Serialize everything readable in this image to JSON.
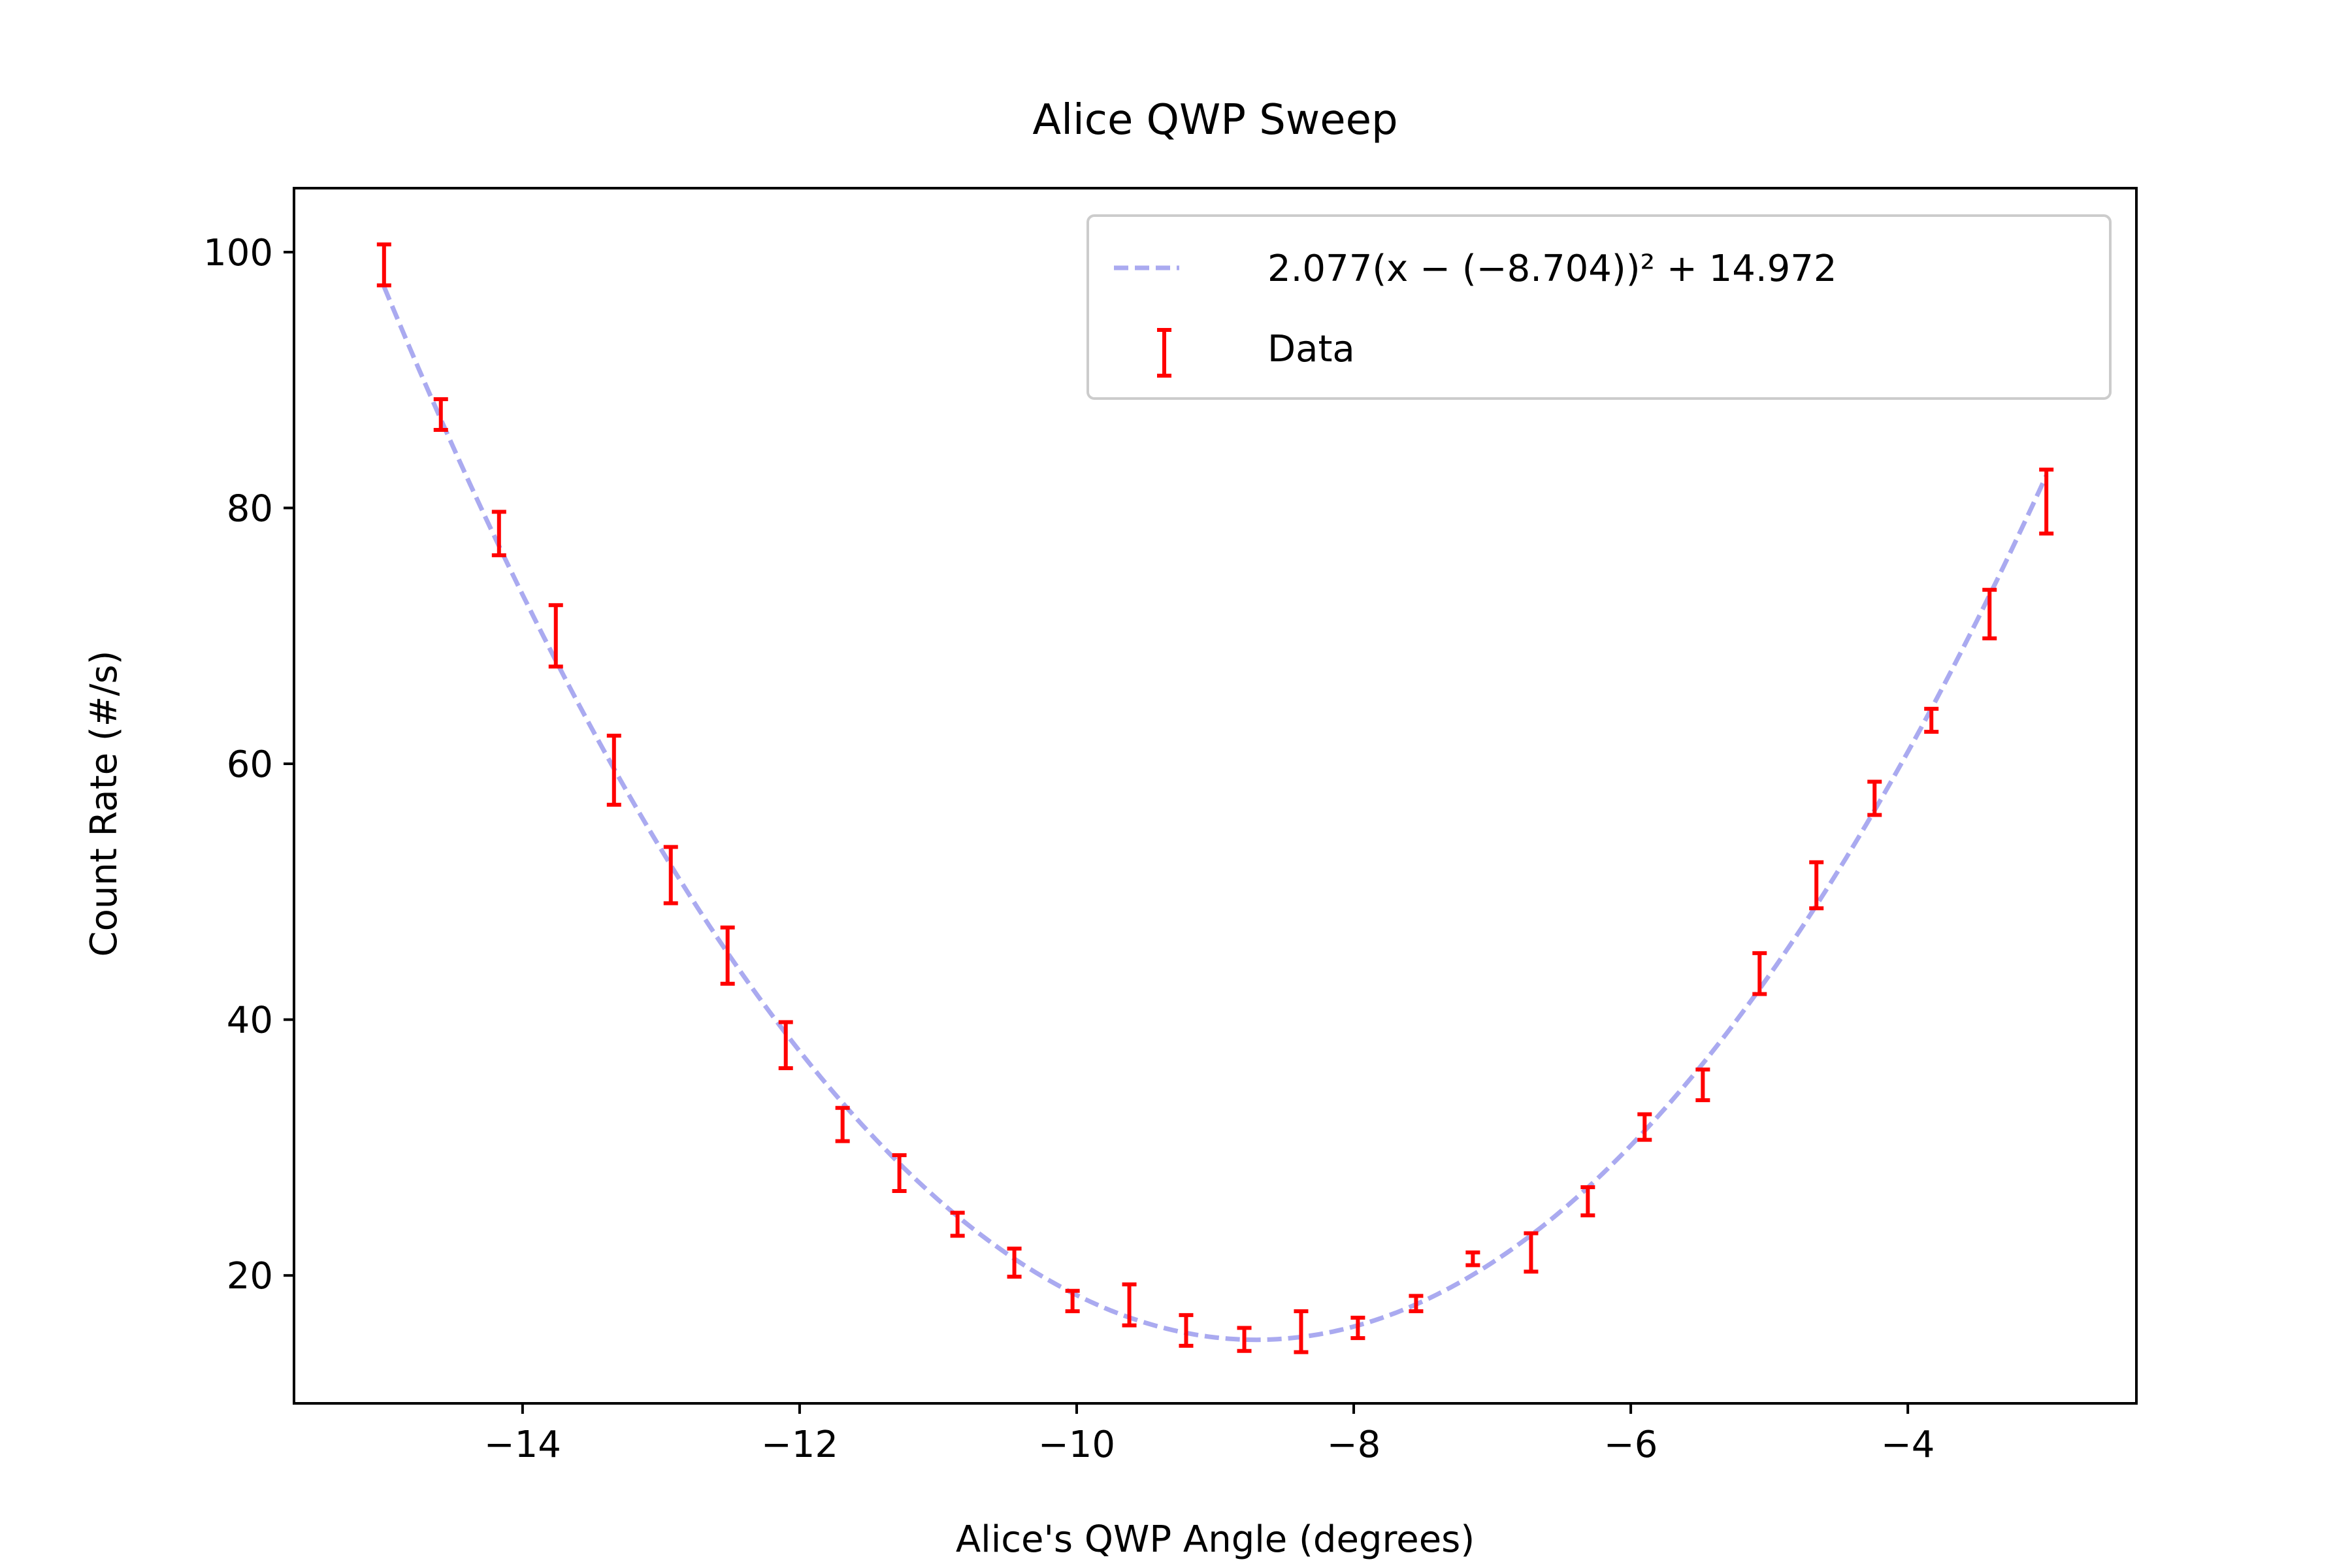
{
  "chart_data": {
    "type": "scatter",
    "title": "Alice QWP Sweep",
    "xlabel": "Alice's QWP Angle (degrees)",
    "ylabel": "Count Rate (#/s)",
    "xlim": [
      -15.65,
      -2.35
    ],
    "ylim": [
      10,
      105
    ],
    "xticks": [
      {
        "value": -14,
        "label": "−14"
      },
      {
        "value": -12,
        "label": "−12"
      },
      {
        "value": -10,
        "label": "−10"
      },
      {
        "value": -8,
        "label": "−8"
      },
      {
        "value": -6,
        "label": "−6"
      },
      {
        "value": -4,
        "label": "−4"
      }
    ],
    "yticks": [
      {
        "value": 20,
        "label": "20"
      },
      {
        "value": 40,
        "label": "40"
      },
      {
        "value": 60,
        "label": "60"
      },
      {
        "value": 80,
        "label": "80"
      },
      {
        "value": 100,
        "label": "100"
      }
    ],
    "grid": false,
    "legend_position": "top-right",
    "fit": {
      "name": "2.077(x − (−8.704))² + 14.972",
      "a": 2.077,
      "h": -8.704,
      "k": 14.972,
      "x_range": [
        -15,
        -3
      ],
      "color": "#aaaaf0",
      "style": "dashed"
    },
    "series": [
      {
        "name": "Data",
        "color": "#ff0000",
        "x": [
          -15.0,
          -14.59,
          -14.17,
          -13.76,
          -13.34,
          -12.93,
          -12.52,
          -12.1,
          -11.69,
          -11.28,
          -10.86,
          -10.45,
          -10.03,
          -9.62,
          -9.21,
          -8.79,
          -8.38,
          -7.97,
          -7.55,
          -7.14,
          -6.72,
          -6.31,
          -5.9,
          -5.48,
          -5.07,
          -4.66,
          -4.24,
          -3.83,
          -3.41,
          -3.0
        ],
        "y": [
          99.0,
          87.3,
          78.0,
          70.0,
          59.5,
          51.3,
          45.0,
          38.0,
          31.8,
          28.0,
          24.0,
          21.0,
          18.0,
          17.7,
          15.7,
          15.0,
          15.6,
          15.9,
          17.8,
          21.3,
          21.8,
          25.8,
          31.6,
          34.9,
          43.6,
          50.5,
          57.3,
          63.4,
          71.7,
          80.5
        ],
        "err": [
          1.6,
          1.2,
          1.7,
          2.4,
          2.7,
          2.2,
          2.2,
          1.8,
          1.3,
          1.4,
          0.9,
          1.1,
          0.8,
          1.6,
          1.2,
          0.9,
          1.6,
          0.8,
          0.6,
          0.5,
          1.5,
          1.1,
          1.0,
          1.2,
          1.6,
          1.8,
          1.3,
          0.9,
          1.9,
          2.5
        ]
      }
    ]
  }
}
